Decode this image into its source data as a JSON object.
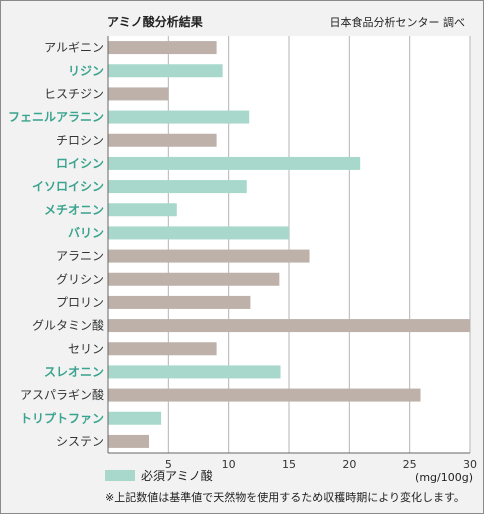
{
  "chart_data": {
    "type": "bar",
    "orientation": "horizontal",
    "title": "アミノ酸分析結果",
    "source": "日本食品分析センター 調べ",
    "unit": "(mg/100g)",
    "legend": "必須アミノ酸",
    "footnote": "※上記数値は基準値で天然物を使用するため収穫時期により変化します。",
    "colors": {
      "essential": "#a7d8cb",
      "other": "#bdb1aa",
      "essential_label": "#3aa48e"
    },
    "xlim": [
      0,
      30
    ],
    "xticks": [
      5,
      10,
      15,
      20,
      25,
      30
    ],
    "categories": [
      {
        "name": "アルギニン",
        "value": 9.0,
        "essential": false
      },
      {
        "name": "リジン",
        "value": 9.5,
        "essential": true
      },
      {
        "name": "ヒスチジン",
        "value": 5.0,
        "essential": false
      },
      {
        "name": "フェニルアラニン",
        "value": 11.7,
        "essential": true
      },
      {
        "name": "チロシン",
        "value": 9.0,
        "essential": false
      },
      {
        "name": "ロイシン",
        "value": 20.9,
        "essential": true
      },
      {
        "name": "イソロイシン",
        "value": 11.5,
        "essential": true
      },
      {
        "name": "メチオニン",
        "value": 5.7,
        "essential": true
      },
      {
        "name": "バリン",
        "value": 15.0,
        "essential": true
      },
      {
        "name": "アラニン",
        "value": 16.7,
        "essential": false
      },
      {
        "name": "グリシン",
        "value": 14.2,
        "essential": false
      },
      {
        "name": "プロリン",
        "value": 11.8,
        "essential": false
      },
      {
        "name": "グルタミン酸",
        "value": 30.0,
        "essential": false
      },
      {
        "name": "セリン",
        "value": 9.0,
        "essential": false
      },
      {
        "name": "スレオニン",
        "value": 14.3,
        "essential": true
      },
      {
        "name": "アスパラギン酸",
        "value": 25.9,
        "essential": false
      },
      {
        "name": "トリプトファン",
        "value": 4.4,
        "essential": true
      },
      {
        "name": "システン",
        "value": 3.4,
        "essential": false
      }
    ]
  }
}
